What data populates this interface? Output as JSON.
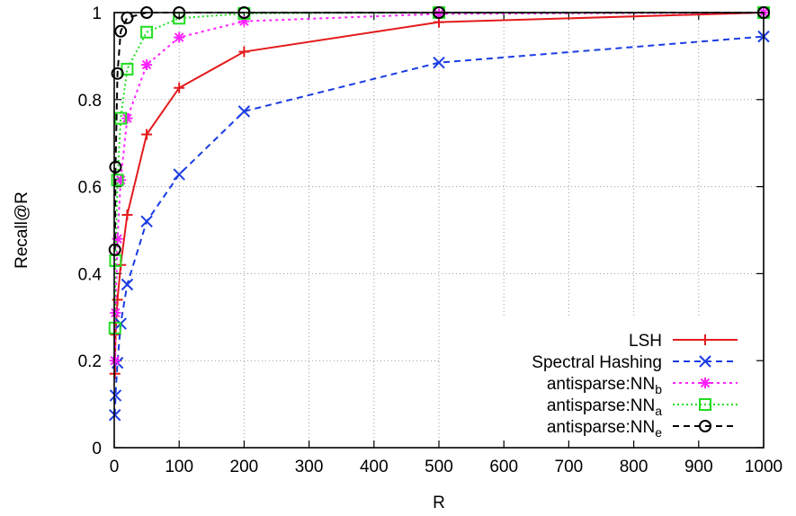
{
  "chart_data": {
    "type": "line",
    "xlabel": "R",
    "ylabel": "Recall@R",
    "xlim": [
      0,
      1000
    ],
    "ylim": [
      0,
      1
    ],
    "xticks": [
      0,
      100,
      200,
      300,
      400,
      500,
      600,
      700,
      800,
      900,
      1000
    ],
    "yticks": [
      0,
      0.2,
      0.4,
      0.6,
      0.8,
      1
    ],
    "ytick_labels": [
      "0",
      "0.2",
      "0.4",
      "0.6",
      "0.8",
      "1"
    ],
    "grid": true,
    "legend_position": "bottom-right",
    "series": [
      {
        "name": "LSH",
        "name_sub": "",
        "color": "#e41a1c",
        "dash": "solid",
        "marker": "plus",
        "x": [
          1,
          2,
          5,
          10,
          20,
          50,
          100,
          200,
          500,
          1000
        ],
        "y": [
          0.17,
          0.26,
          0.34,
          0.42,
          0.535,
          0.72,
          0.827,
          0.91,
          0.978,
          1.0
        ]
      },
      {
        "name": "Spectral Hashing",
        "name_sub": "",
        "color": "#1a3ce4",
        "dash": "dashed",
        "marker": "x",
        "x": [
          1,
          2,
          5,
          10,
          20,
          50,
          100,
          200,
          500,
          1000
        ],
        "y": [
          0.075,
          0.12,
          0.195,
          0.285,
          0.375,
          0.52,
          0.628,
          0.773,
          0.885,
          0.945
        ]
      },
      {
        "name": "antisparse:NN",
        "name_sub": "b",
        "color": "#ff22ff",
        "dash": "dotted-short",
        "marker": "star",
        "x": [
          1,
          2,
          5,
          10,
          20,
          50,
          100,
          200,
          500,
          1000
        ],
        "y": [
          0.2,
          0.31,
          0.48,
          0.615,
          0.757,
          0.88,
          0.943,
          0.98,
          0.997,
          1.0
        ]
      },
      {
        "name": "antisparse:NN",
        "name_sub": "a",
        "color": "#22dd22",
        "dash": "dotted",
        "marker": "square",
        "x": [
          1,
          2,
          5,
          10,
          20,
          50,
          100,
          200,
          500,
          1000
        ],
        "y": [
          0.275,
          0.43,
          0.615,
          0.757,
          0.87,
          0.955,
          0.987,
          0.998,
          1.0,
          1.0
        ]
      },
      {
        "name": "antisparse:NN",
        "name_sub": "e",
        "color": "#000000",
        "dash": "dashed",
        "marker": "circle",
        "x": [
          1,
          2,
          5,
          10,
          20,
          50,
          100,
          200,
          500,
          1000
        ],
        "y": [
          0.455,
          0.645,
          0.86,
          0.957,
          0.988,
          1.0,
          1.0,
          1.0,
          1.0,
          1.0
        ]
      }
    ]
  }
}
